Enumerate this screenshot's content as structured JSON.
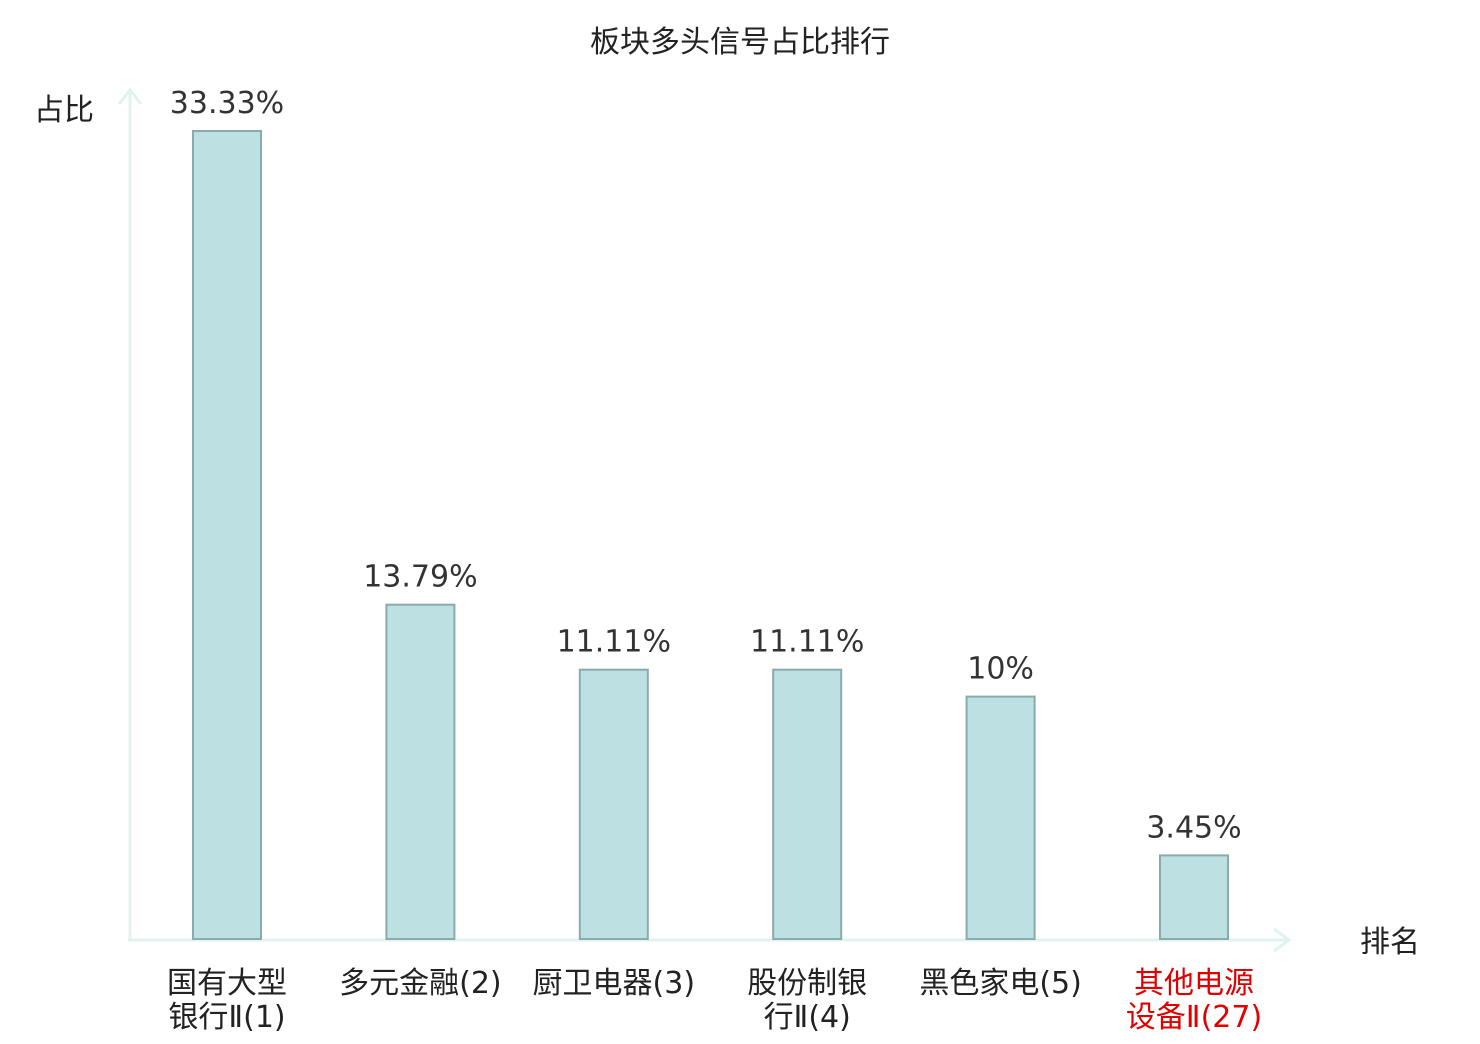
{
  "chart_data": {
    "type": "bar",
    "title": "板块多头信号占比排行",
    "ylabel": "占比",
    "xlabel": "排名",
    "ylim": [
      0,
      35
    ],
    "grid": false,
    "categories": [
      {
        "lines": [
          "国有大型",
          "银行Ⅱ(1)"
        ],
        "highlight": false
      },
      {
        "lines": [
          "多元金融(2)"
        ],
        "highlight": false
      },
      {
        "lines": [
          "厨卫电器(3)"
        ],
        "highlight": false
      },
      {
        "lines": [
          "股份制银",
          "行Ⅱ(4)"
        ],
        "highlight": false
      },
      {
        "lines": [
          "黑色家电(5)"
        ],
        "highlight": false
      },
      {
        "lines": [
          "其他电源",
          "设备Ⅱ(27)"
        ],
        "highlight": true
      }
    ],
    "values": [
      33.33,
      13.79,
      11.11,
      11.11,
      10,
      3.45
    ],
    "value_labels": [
      "33.33%",
      "13.79%",
      "11.11%",
      "11.11%",
      "10%",
      "3.45%"
    ],
    "colors": {
      "bar_fill": "#bde0e3",
      "bar_stroke": "#8aaaab",
      "axis": "#e0f3f1",
      "text": "#222222",
      "value_label": "#333333",
      "highlight": "#e00000"
    }
  }
}
